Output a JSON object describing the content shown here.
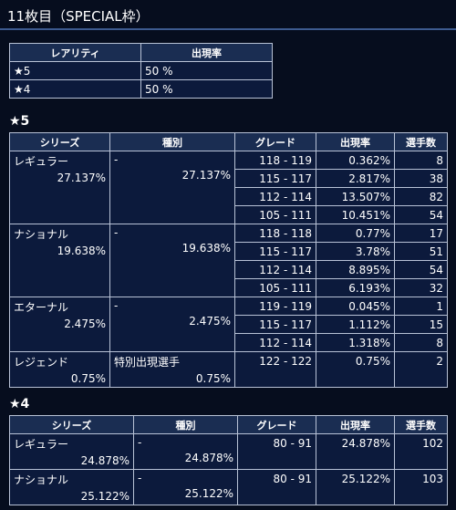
{
  "page": {
    "title": "11枚目（SPECIAL枠）"
  },
  "rarity_table": {
    "headers": [
      "レアリティ",
      "出現率"
    ],
    "rows": [
      {
        "rarity": "★5",
        "rate": "50 %"
      },
      {
        "rarity": "★4",
        "rate": "50 %"
      }
    ]
  },
  "star5": {
    "title": "★5",
    "headers": [
      "シリーズ",
      "種別",
      "グレード",
      "出現率",
      "選手数"
    ],
    "groups": [
      {
        "series": "レギュラー",
        "series_rate": "27.137%",
        "kind": "-",
        "kind_rate": "27.137%",
        "rows": [
          {
            "grade": "118 - 119",
            "rate": "0.362%",
            "players": "8"
          },
          {
            "grade": "115 - 117",
            "rate": "2.817%",
            "players": "38"
          },
          {
            "grade": "112 - 114",
            "rate": "13.507%",
            "players": "82"
          },
          {
            "grade": "105 - 111",
            "rate": "10.451%",
            "players": "54"
          }
        ]
      },
      {
        "series": "ナショナル",
        "series_rate": "19.638%",
        "kind": "-",
        "kind_rate": "19.638%",
        "rows": [
          {
            "grade": "118 - 118",
            "rate": "0.77%",
            "players": "17"
          },
          {
            "grade": "115 - 117",
            "rate": "3.78%",
            "players": "51"
          },
          {
            "grade": "112 - 114",
            "rate": "8.895%",
            "players": "54"
          },
          {
            "grade": "105 - 111",
            "rate": "6.193%",
            "players": "32"
          }
        ]
      },
      {
        "series": "エターナル",
        "series_rate": "2.475%",
        "kind": "-",
        "kind_rate": "2.475%",
        "rows": [
          {
            "grade": "119 - 119",
            "rate": "0.045%",
            "players": "1"
          },
          {
            "grade": "115 - 117",
            "rate": "1.112%",
            "players": "15"
          },
          {
            "grade": "112 - 114",
            "rate": "1.318%",
            "players": "8"
          }
        ]
      },
      {
        "series": "レジェンド",
        "series_rate": "0.75%",
        "kind": "特別出現選手",
        "kind_rate": "0.75%",
        "rows": [
          {
            "grade": "122 - 122",
            "rate": "0.75%",
            "players": "2"
          }
        ]
      }
    ]
  },
  "star4": {
    "title": "★4",
    "headers": [
      "シリーズ",
      "種別",
      "グレード",
      "出現率",
      "選手数"
    ],
    "rows": [
      {
        "series": "レギュラー",
        "series_rate": "24.878%",
        "kind": "-",
        "kind_rate": "24.878%",
        "grade": "80 - 91",
        "rate": "24.878%",
        "players": "102"
      },
      {
        "series": "ナショナル",
        "series_rate": "25.122%",
        "kind": "-",
        "kind_rate": "25.122%",
        "grade": "80 - 91",
        "rate": "25.122%",
        "players": "103"
      }
    ]
  }
}
